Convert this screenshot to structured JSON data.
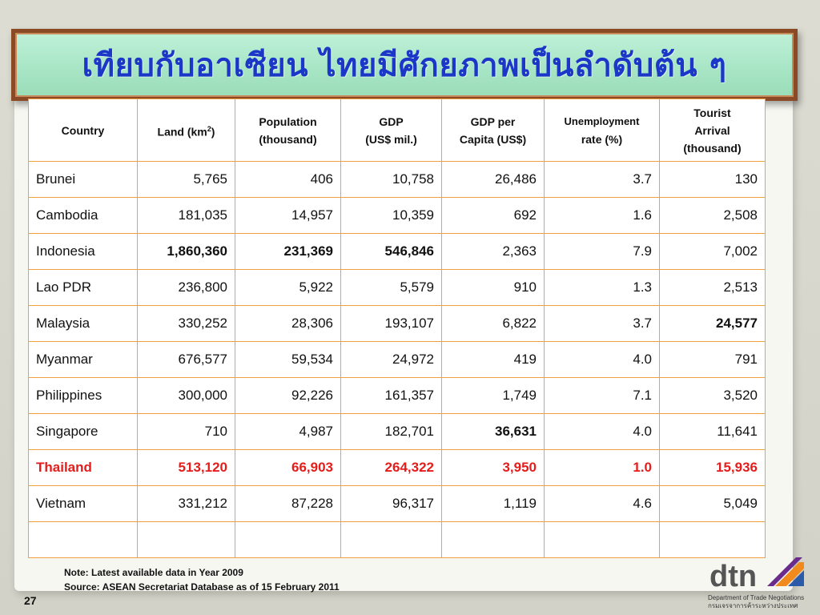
{
  "title": "เทียบกับอาเซียน ไทยมีศักยภาพเป็นลำดับต้น ๆ",
  "table": {
    "headers": {
      "country": "Country",
      "land": "Land (km",
      "land_sup": "2",
      "land_end": ")",
      "population_1": "Population",
      "population_2": "(thousand)",
      "gdp_1": "GDP",
      "gdp_2": "(US$ mil.)",
      "gdp_per_capita_1": "GDP per",
      "gdp_per_capita_2": "Capita (US$)",
      "unemployment_1": "Unemployment",
      "unemployment_2": "rate (%)",
      "tourist_1": "Tourist",
      "tourist_2": "Arrival",
      "tourist_3": "(thousand)"
    },
    "rows": [
      {
        "country": "Brunei",
        "land": "5,765",
        "population": "406",
        "gdp": "10,758",
        "gdp_per_capita": "26,486",
        "unemployment": "3.7",
        "tourist": "130"
      },
      {
        "country": "Cambodia",
        "land": "181,035",
        "population": "14,957",
        "gdp": "10,359",
        "gdp_per_capita": "692",
        "unemployment": "1.6",
        "tourist": "2,508"
      },
      {
        "country": "Indonesia",
        "land": "1,860,360",
        "population": "231,369",
        "gdp": "546,846",
        "gdp_per_capita": "2,363",
        "unemployment": "7.9",
        "tourist": "7,002"
      },
      {
        "country": "Lao PDR",
        "land": "236,800",
        "population": "5,922",
        "gdp": "5,579",
        "gdp_per_capita": "910",
        "unemployment": "1.3",
        "tourist": "2,513"
      },
      {
        "country": "Malaysia",
        "land": "330,252",
        "population": "28,306",
        "gdp": "193,107",
        "gdp_per_capita": "6,822",
        "unemployment": "3.7",
        "tourist": "24,577"
      },
      {
        "country": "Myanmar",
        "land": "676,577",
        "population": "59,534",
        "gdp": "24,972",
        "gdp_per_capita": "419",
        "unemployment": "4.0",
        "tourist": "791"
      },
      {
        "country": "Philippines",
        "land": "300,000",
        "population": "92,226",
        "gdp": "161,357",
        "gdp_per_capita": "1,749",
        "unemployment": "7.1",
        "tourist": "3,520"
      },
      {
        "country": "Singapore",
        "land": "710",
        "population": "4,987",
        "gdp": "182,701",
        "gdp_per_capita": "36,631",
        "unemployment": "4.0",
        "tourist": "11,641"
      },
      {
        "country": "Thailand",
        "land": "513,120",
        "population": "66,903",
        "gdp": "264,322",
        "gdp_per_capita": "3,950",
        "unemployment": "1.0",
        "tourist": "15,936"
      },
      {
        "country": "Vietnam",
        "land": "331,212",
        "population": "87,228",
        "gdp": "96,317",
        "gdp_per_capita": "1,119",
        "unemployment": "4.6",
        "tourist": "5,049"
      }
    ]
  },
  "note_line1": "Note:  Latest available data in Year 2009",
  "note_line2": "Source: ASEAN Secretariat Database as of 15 February 2011",
  "page_number": "27",
  "logo": {
    "name": "dtn-logo-icon",
    "text": "dtn",
    "subtitle_en": "Department of Trade Negotiations",
    "subtitle_th": "กรมเจรจาการค้าระหว่างประเทศ"
  },
  "colors": {
    "title": "#1b37c8",
    "banner_bg": "#a8e6c6",
    "banner_border": "#8b4a26",
    "table_border": "#f0a040",
    "highlight": "#e51c1c"
  }
}
